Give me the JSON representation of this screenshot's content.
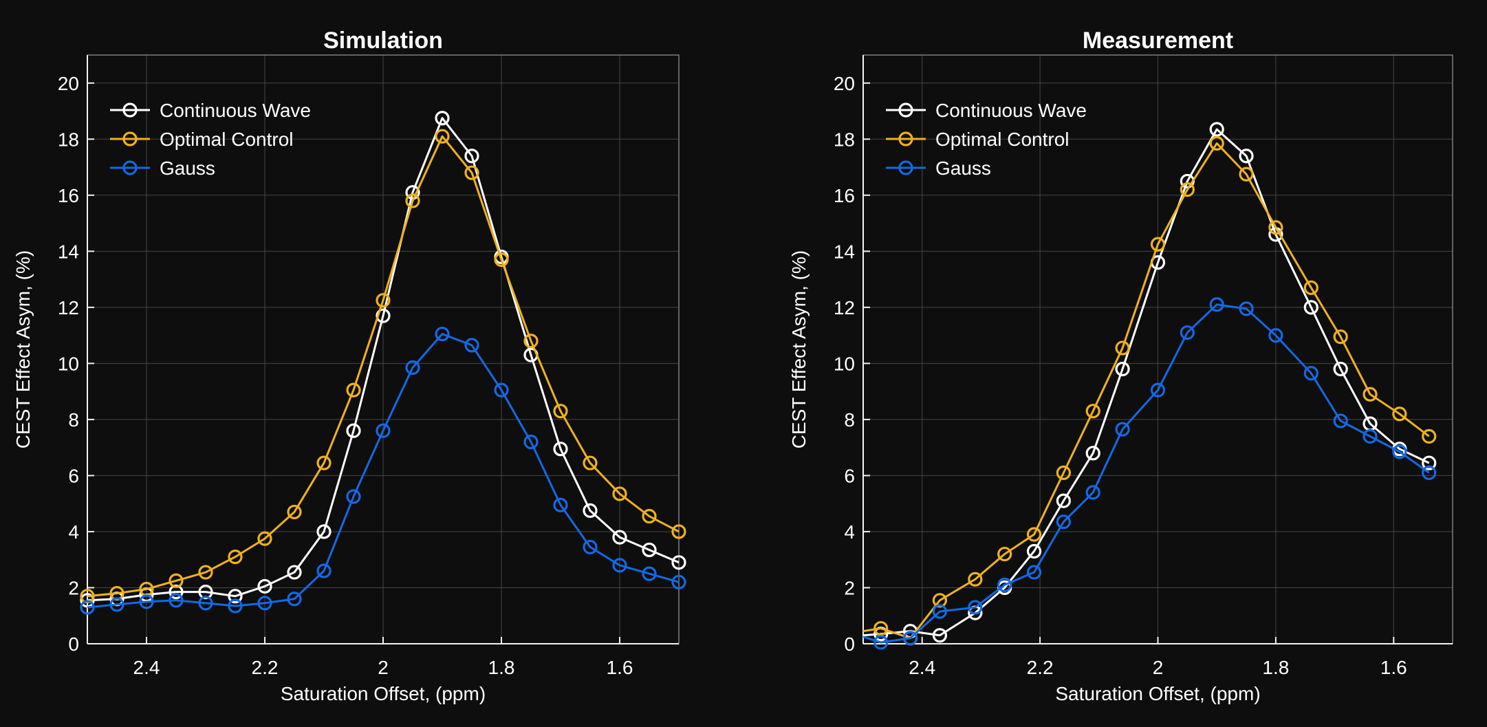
{
  "figure": {
    "background": "#0e0e0e",
    "axis_color": "#f2f2f2",
    "box_color": "#8f8f8f",
    "grid_color": "#474747",
    "text_color": "#ffffff"
  },
  "chart_data": [
    {
      "type": "line",
      "title": "Simulation",
      "xlabel": "Saturation Offset, (ppm)",
      "ylabel": "CEST Effect Asym, (%)",
      "xlim": [
        2.5,
        1.5
      ],
      "x_reversed": true,
      "ylim": [
        0,
        21
      ],
      "xticks": [
        2.4,
        2.2,
        2.0,
        1.8,
        1.6
      ],
      "xtick_labels": [
        "2.4",
        "2.2",
        "2",
        "1.8",
        "1.6"
      ],
      "yticks": [
        0,
        2,
        4,
        6,
        8,
        10,
        12,
        14,
        16,
        18,
        20
      ],
      "ytick_labels": [
        "0",
        "2",
        "4",
        "6",
        "8",
        "10",
        "12",
        "14",
        "16",
        "18",
        "20"
      ],
      "grid": true,
      "legend_position": "top-left",
      "x": [
        2.5,
        2.45,
        2.4,
        2.35,
        2.3,
        2.25,
        2.2,
        2.15,
        2.1,
        2.05,
        2.0,
        1.95,
        1.9,
        1.85,
        1.8,
        1.75,
        1.7,
        1.65,
        1.6,
        1.55,
        1.5
      ],
      "series": [
        {
          "name": "Continuous Wave",
          "color": "#ffffff",
          "marker": "o",
          "marker_from_index": 0,
          "values": [
            1.55,
            1.6,
            1.75,
            1.85,
            1.85,
            1.7,
            2.05,
            2.55,
            4.0,
            7.6,
            11.7,
            16.1,
            18.75,
            17.4,
            13.8,
            10.3,
            6.95,
            4.75,
            3.8,
            3.35,
            2.9
          ]
        },
        {
          "name": "Optimal Control",
          "color": "#efb11d",
          "marker": "o",
          "marker_from_index": 0,
          "values": [
            1.7,
            1.8,
            1.95,
            2.25,
            2.55,
            3.1,
            3.75,
            4.7,
            6.45,
            9.05,
            12.25,
            15.8,
            18.1,
            16.8,
            13.7,
            10.8,
            8.3,
            6.45,
            5.35,
            4.55,
            4.0
          ]
        },
        {
          "name": "Gauss",
          "color": "#1469e3",
          "marker": "o",
          "marker_from_index": 0,
          "values": [
            1.3,
            1.4,
            1.5,
            1.55,
            1.45,
            1.35,
            1.45,
            1.6,
            2.6,
            5.25,
            7.6,
            9.85,
            11.05,
            10.65,
            9.05,
            7.2,
            4.95,
            3.45,
            2.8,
            2.5,
            2.2
          ]
        }
      ]
    },
    {
      "type": "line",
      "title": "Measurement",
      "xlabel": "Saturation Offset, (ppm)",
      "ylabel": "CEST Effect Asym, (%)",
      "xlim": [
        2.5,
        1.5
      ],
      "x_reversed": true,
      "ylim": [
        0,
        21
      ],
      "xticks": [
        2.4,
        2.2,
        2.0,
        1.8,
        1.6
      ],
      "xtick_labels": [
        "2.4",
        "2.2",
        "2",
        "1.8",
        "1.6"
      ],
      "yticks": [
        0,
        2,
        4,
        6,
        8,
        10,
        12,
        14,
        16,
        18,
        20
      ],
      "ytick_labels": [
        "0",
        "2",
        "4",
        "6",
        "8",
        "10",
        "12",
        "14",
        "16",
        "18",
        "20"
      ],
      "grid": true,
      "legend_position": "top-left",
      "x": [
        2.5,
        2.47,
        2.42,
        2.37,
        2.31,
        2.26,
        2.21,
        2.16,
        2.11,
        2.06,
        2.0,
        1.95,
        1.9,
        1.85,
        1.8,
        1.74,
        1.69,
        1.64,
        1.59,
        1.54
      ],
      "series": [
        {
          "name": "Continuous Wave",
          "color": "#ffffff",
          "marker": "o",
          "marker_from_index": 1,
          "values": [
            0.3,
            0.35,
            0.45,
            0.3,
            1.1,
            2.0,
            3.3,
            5.1,
            6.8,
            9.8,
            13.6,
            16.5,
            18.35,
            17.4,
            14.6,
            12.0,
            9.8,
            7.85,
            6.95,
            6.45
          ]
        },
        {
          "name": "Optimal Control",
          "color": "#efb11d",
          "marker": "o",
          "marker_from_index": 1,
          "values": [
            0.45,
            0.55,
            0.2,
            1.55,
            2.3,
            3.2,
            3.9,
            6.1,
            8.3,
            10.55,
            14.25,
            16.2,
            17.85,
            16.75,
            14.85,
            12.7,
            10.95,
            8.9,
            8.2,
            7.4
          ]
        },
        {
          "name": "Gauss",
          "color": "#1469e3",
          "marker": "o",
          "marker_from_index": 1,
          "values": [
            0.25,
            0.05,
            0.2,
            1.15,
            1.3,
            2.1,
            2.55,
            4.35,
            5.4,
            7.65,
            9.05,
            11.1,
            12.1,
            11.95,
            11.0,
            9.65,
            7.95,
            7.4,
            6.85,
            6.1
          ]
        }
      ]
    }
  ]
}
